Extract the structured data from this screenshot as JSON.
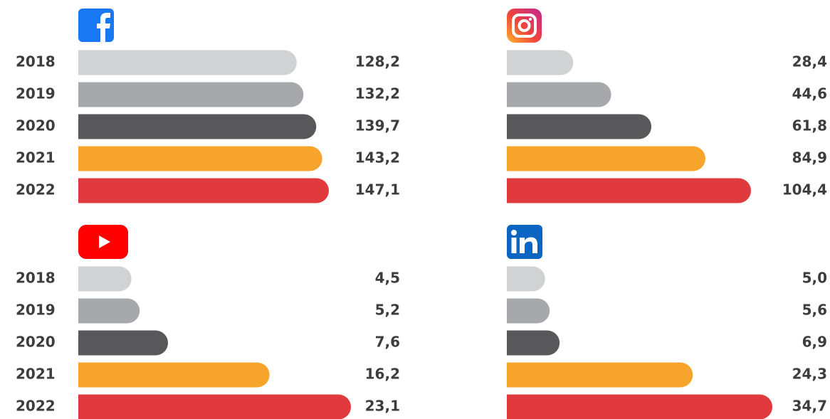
{
  "chart_data": [
    {
      "type": "bar",
      "categories": [
        "2018",
        "2019",
        "2020",
        "2021",
        "2022"
      ],
      "values": [
        128.2,
        132.2,
        139.7,
        143.2,
        147.1
      ],
      "value_labels": [
        "128,2",
        "132,2",
        "139,7",
        "143,2",
        "147,1"
      ],
      "colors": [
        "#d1d2d4",
        "#a7a8ab",
        "#58585a",
        "#f6a42c",
        "#e03a3e"
      ]
    },
    {
      "type": "bar",
      "values": [
        28.4,
        44.6,
        61.8,
        84.9,
        104.4
      ],
      "value_labels": [
        "28,4",
        "44,6",
        "61,8",
        "84,9",
        "104,4"
      ],
      "colors": [
        "#d1d2d4",
        "#a7a8ab",
        "#58585a",
        "#f6a42c",
        "#e03a3e"
      ]
    },
    {
      "type": "bar",
      "categories": [
        "2018",
        "2019",
        "2020",
        "2021",
        "2022"
      ],
      "values": [
        4.5,
        5.2,
        7.6,
        16.2,
        23.1
      ],
      "value_labels": [
        "4,5",
        "5,2",
        "7,6",
        "16,2",
        "23,1"
      ],
      "colors": [
        "#d1d2d4",
        "#a7a8ab",
        "#58585a",
        "#f6a42c",
        "#e03a3e"
      ]
    },
    {
      "type": "bar",
      "values": [
        5.0,
        5.6,
        6.9,
        24.3,
        34.7
      ],
      "value_labels": [
        "5,0",
        "5,6",
        "6,9",
        "24,3",
        "34,7"
      ],
      "colors": [
        "#d1d2d4",
        "#a7a8ab",
        "#58585a",
        "#f6a42c",
        "#e03a3e"
      ]
    }
  ]
}
